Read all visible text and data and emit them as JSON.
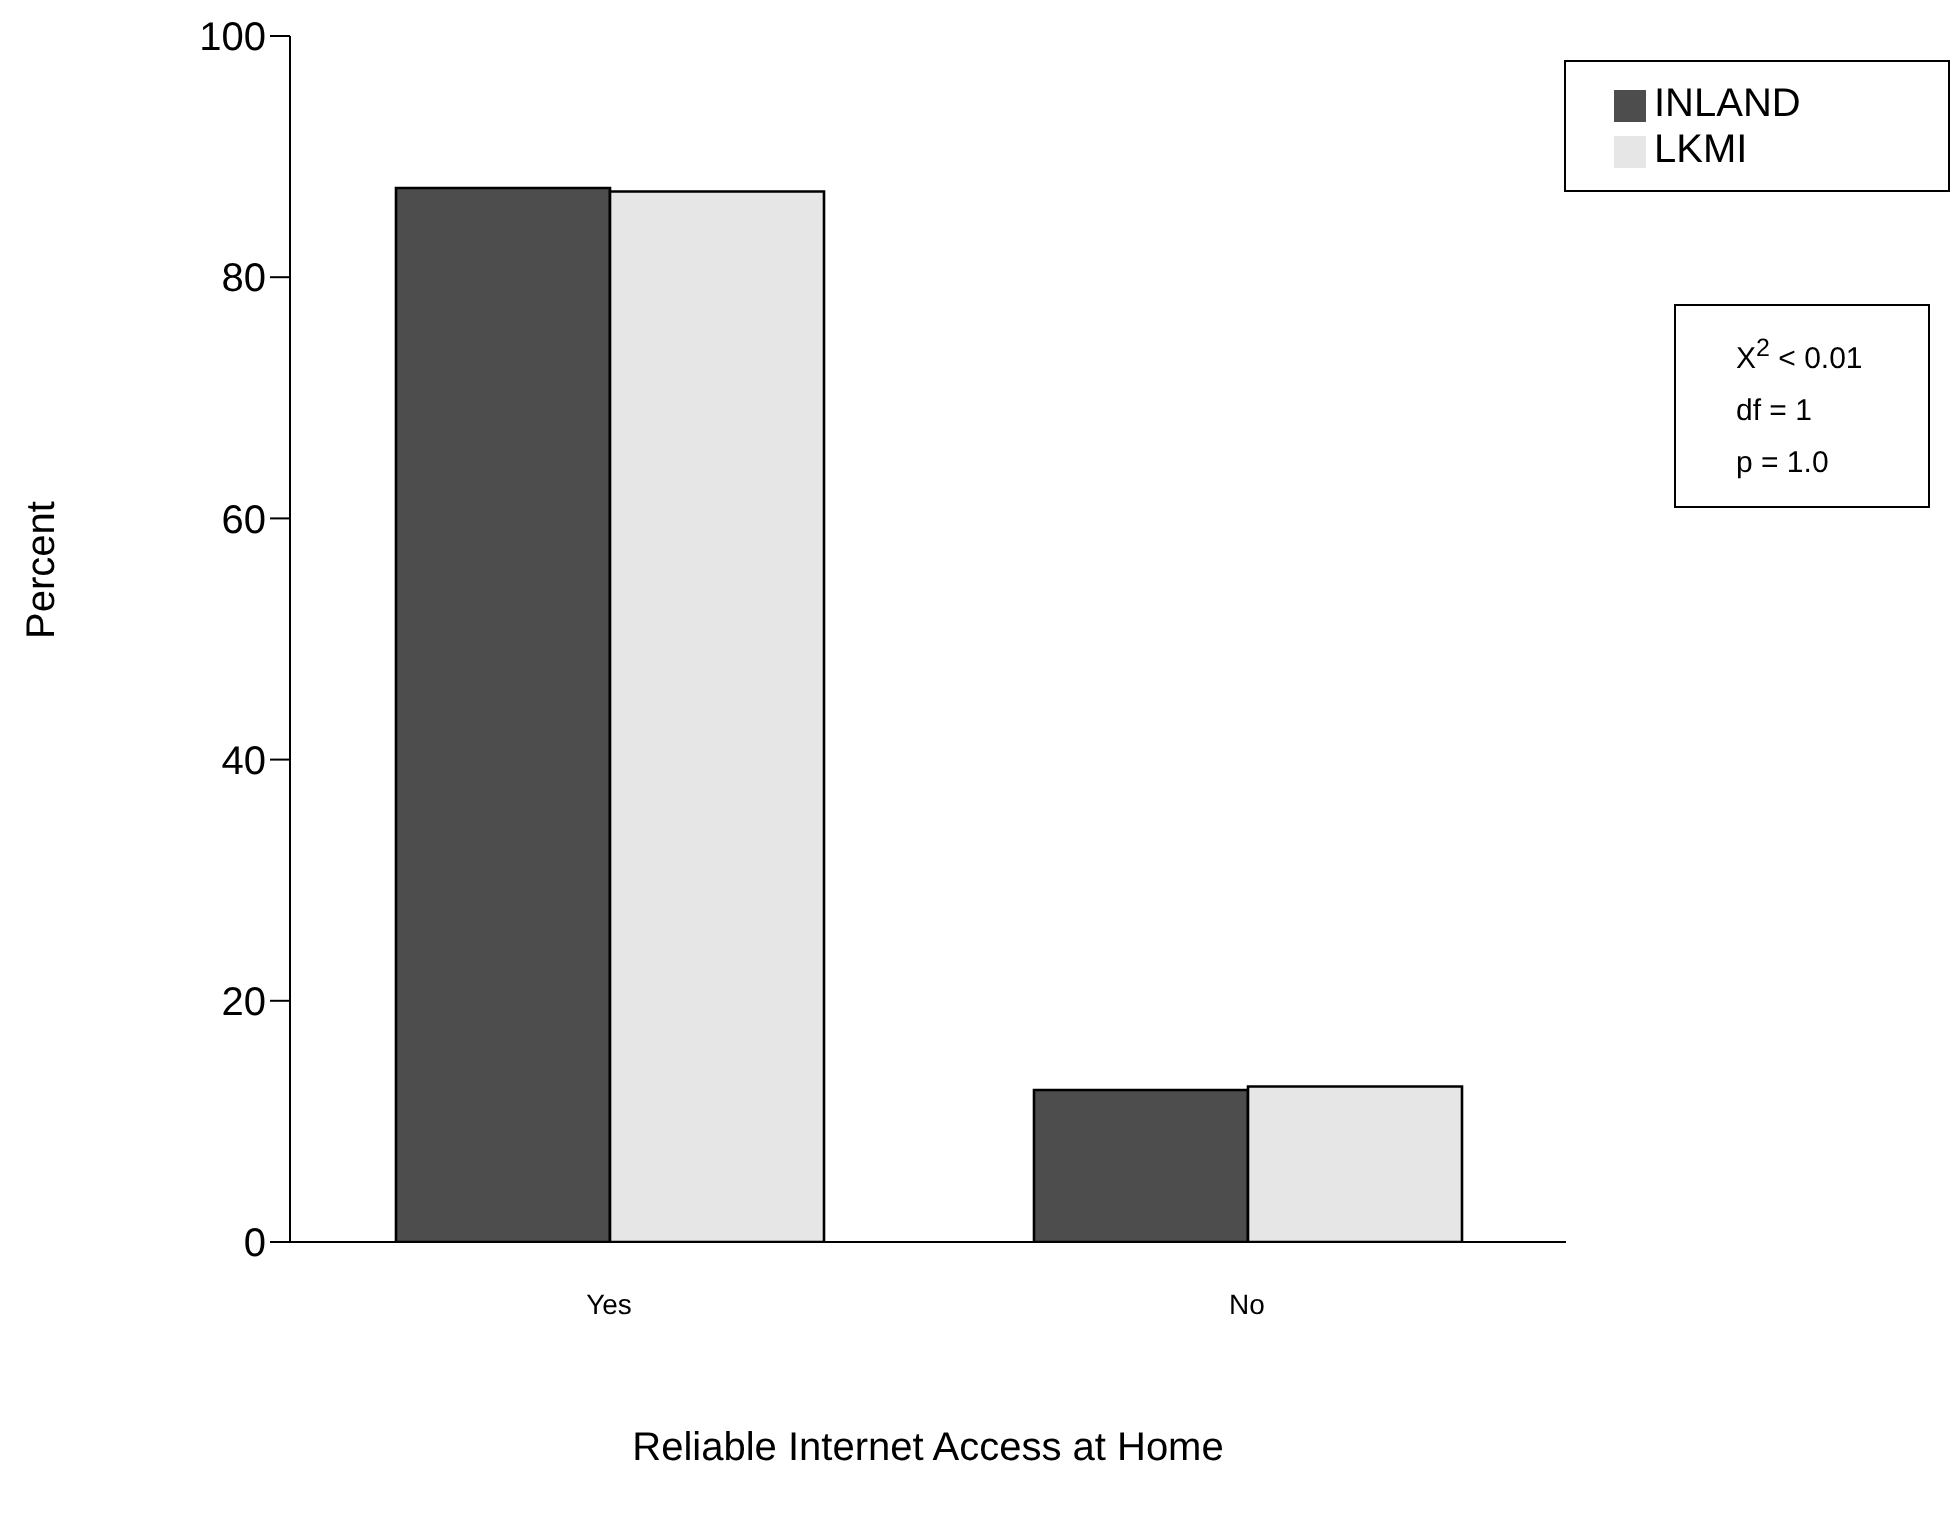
{
  "chart_data": {
    "type": "bar",
    "xlabel": "Reliable Internet Access at Home",
    "ylabel": "Percent",
    "categories": [
      "Yes",
      "No"
    ],
    "series": [
      {
        "name": "INLAND",
        "color": "#4d4d4d",
        "values": [
          87.4,
          12.6
        ]
      },
      {
        "name": "LKMI",
        "color": "#e6e6e6",
        "values": [
          87.1,
          12.9
        ]
      }
    ],
    "ylim": [
      0,
      100
    ],
    "yticks": [
      0,
      20,
      40,
      60,
      80,
      100
    ],
    "legend": "top right",
    "grid": false,
    "annotations": [
      "X$^{2}$ < 0.01",
      "df = 1",
      "p = 1.0"
    ]
  }
}
